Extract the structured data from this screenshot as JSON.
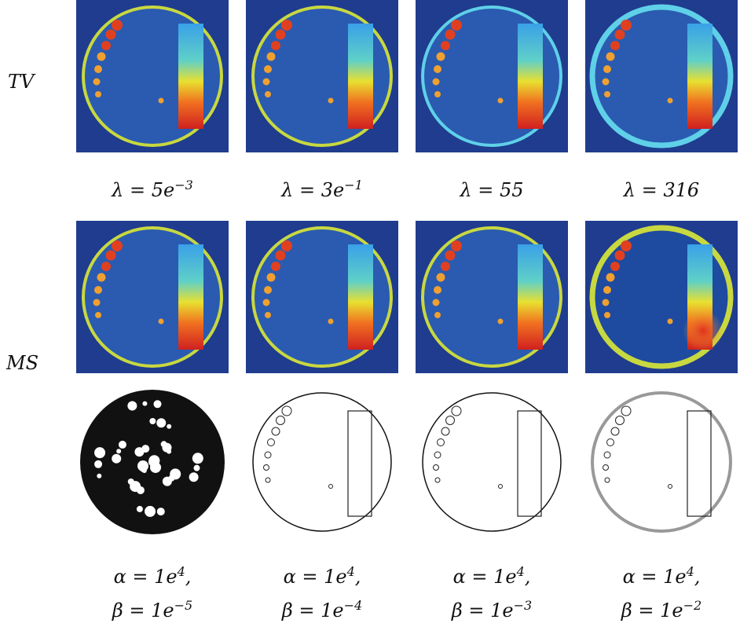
{
  "row_labels": [
    "TV",
    "MS"
  ],
  "tv_captions": [
    {
      "text": "λ = 5e",
      "sup": "−3"
    },
    {
      "text": "λ = 3e",
      "sup": "−1"
    },
    {
      "text": "λ = 55"
    },
    {
      "text": "λ = 316"
    }
  ],
  "ms_captions": [
    {
      "alpha": "α = 1e",
      "alpha_sup": "4",
      "alpha_end": ",",
      "beta": "β = 1e",
      "beta_sup": "−5"
    },
    {
      "alpha": "α = 1e",
      "alpha_sup": "4",
      "alpha_end": ",",
      "beta": "β = 1e",
      "beta_sup": "−4"
    },
    {
      "alpha": "α = 1e",
      "alpha_sup": "4",
      "alpha_end": ",",
      "beta": "β = 1e",
      "beta_sup": "−3"
    },
    {
      "alpha": "α = 1e",
      "alpha_sup": "4",
      "alpha_end": ",",
      "beta": "β = 1e",
      "beta_sup": "−2"
    }
  ]
}
